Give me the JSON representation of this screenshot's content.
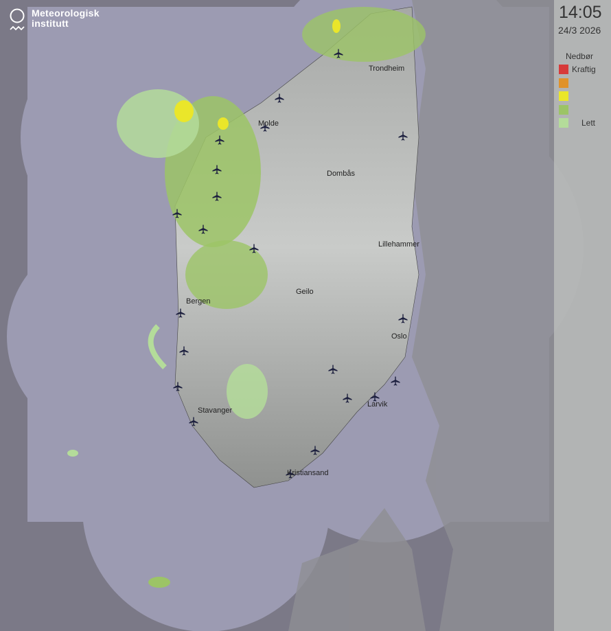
{
  "logo": {
    "line1": "Meteorologisk",
    "line2": "institutt"
  },
  "time": "14:05",
  "date": "24/3 2026",
  "legend": {
    "title": "Nedbør",
    "items": [
      {
        "color": "#d73a3a",
        "label": "Kraftig"
      },
      {
        "color": "#e0922a",
        "label": ""
      },
      {
        "color": "#eae62a",
        "label": ""
      },
      {
        "color": "#9cc466",
        "label": ""
      },
      {
        "color": "#b4dc9a",
        "label": "Lett"
      }
    ]
  },
  "cities": [
    "Trondheim",
    "Molde",
    "Dombås",
    "Lillehammer",
    "Geilo",
    "Bergen",
    "Oslo",
    "Stavanger",
    "Larvik",
    "Kristiansand"
  ],
  "icons": {
    "airport": "airplane-icon",
    "logo": "met-logo-icon"
  }
}
